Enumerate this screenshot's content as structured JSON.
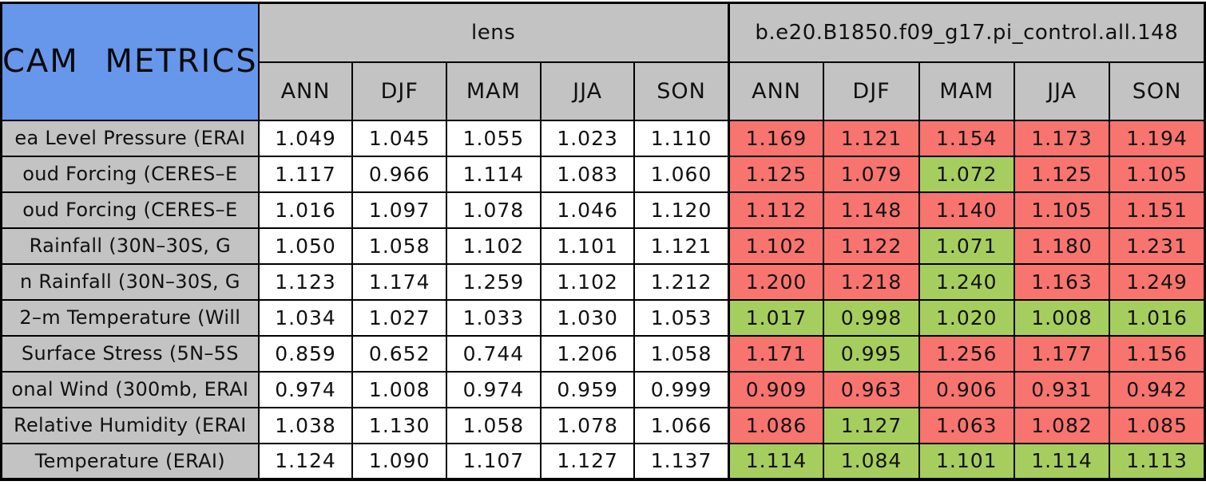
{
  "chart_data": {
    "type": "table",
    "title": "CAM METRICS",
    "column_groups": [
      "lens",
      "b.e20.B1850.f09_g17.pi_control.all.148"
    ],
    "seasons": [
      "ANN",
      "DJF",
      "MAM",
      "JJA",
      "SON"
    ],
    "rows": [
      {
        "label": "ea Level Pressure (ERAI",
        "lens": [
          "1.049",
          "1.045",
          "1.055",
          "1.023",
          "1.110"
        ],
        "control": [
          "1.169",
          "1.121",
          "1.154",
          "1.173",
          "1.194"
        ],
        "control_cell_colors": [
          "red",
          "red",
          "red",
          "red",
          "red"
        ]
      },
      {
        "label": "oud Forcing (CERES–E",
        "lens": [
          "1.117",
          "0.966",
          "1.114",
          "1.083",
          "1.060"
        ],
        "control": [
          "1.125",
          "1.079",
          "1.072",
          "1.125",
          "1.105"
        ],
        "control_cell_colors": [
          "red",
          "red",
          "green",
          "red",
          "red"
        ]
      },
      {
        "label": "oud Forcing (CERES–E",
        "lens": [
          "1.016",
          "1.097",
          "1.078",
          "1.046",
          "1.120"
        ],
        "control": [
          "1.112",
          "1.148",
          "1.140",
          "1.105",
          "1.151"
        ],
        "control_cell_colors": [
          "red",
          "red",
          "red",
          "red",
          "red"
        ]
      },
      {
        "label": "Rainfall (30N–30S, G",
        "lens": [
          "1.050",
          "1.058",
          "1.102",
          "1.101",
          "1.121"
        ],
        "control": [
          "1.102",
          "1.122",
          "1.071",
          "1.180",
          "1.231"
        ],
        "control_cell_colors": [
          "red",
          "red",
          "green",
          "red",
          "red"
        ]
      },
      {
        "label": "n Rainfall (30N–30S, G",
        "lens": [
          "1.123",
          "1.174",
          "1.259",
          "1.102",
          "1.212"
        ],
        "control": [
          "1.200",
          "1.218",
          "1.240",
          "1.163",
          "1.249"
        ],
        "control_cell_colors": [
          "red",
          "red",
          "green",
          "red",
          "red"
        ]
      },
      {
        "label": "2–m Temperature (Will",
        "lens": [
          "1.034",
          "1.027",
          "1.033",
          "1.030",
          "1.053"
        ],
        "control": [
          "1.017",
          "0.998",
          "1.020",
          "1.008",
          "1.016"
        ],
        "control_cell_colors": [
          "green",
          "green",
          "green",
          "green",
          "green"
        ]
      },
      {
        "label": "Surface Stress (5N–5S",
        "lens": [
          "0.859",
          "0.652",
          "0.744",
          "1.206",
          "1.058"
        ],
        "control": [
          "1.171",
          "0.995",
          "1.256",
          "1.177",
          "1.156"
        ],
        "control_cell_colors": [
          "red",
          "green",
          "red",
          "red",
          "red"
        ]
      },
      {
        "label": "onal Wind (300mb, ERAI",
        "lens": [
          "0.974",
          "1.008",
          "0.974",
          "0.959",
          "0.999"
        ],
        "control": [
          "0.909",
          "0.963",
          "0.906",
          "0.931",
          "0.942"
        ],
        "control_cell_colors": [
          "red",
          "red",
          "red",
          "red",
          "red"
        ]
      },
      {
        "label": "Relative Humidity (ERAI",
        "lens": [
          "1.038",
          "1.130",
          "1.058",
          "1.078",
          "1.066"
        ],
        "control": [
          "1.086",
          "1.127",
          "1.063",
          "1.082",
          "1.085"
        ],
        "control_cell_colors": [
          "red",
          "green",
          "red",
          "red",
          "red"
        ]
      },
      {
        "label": "Temperature (ERAI)",
        "lens": [
          "1.124",
          "1.090",
          "1.107",
          "1.127",
          "1.137"
        ],
        "control": [
          "1.114",
          "1.084",
          "1.101",
          "1.114",
          "1.113"
        ],
        "control_cell_colors": [
          "green",
          "green",
          "green",
          "green",
          "green"
        ]
      }
    ],
    "colors": {
      "title_blue": "#6697EB",
      "header_gray": "#C3C3C3",
      "fail_red": "#F8746F",
      "pass_green": "#A6CE5E"
    },
    "layout": {
      "grid": "on",
      "legend": "none"
    }
  }
}
